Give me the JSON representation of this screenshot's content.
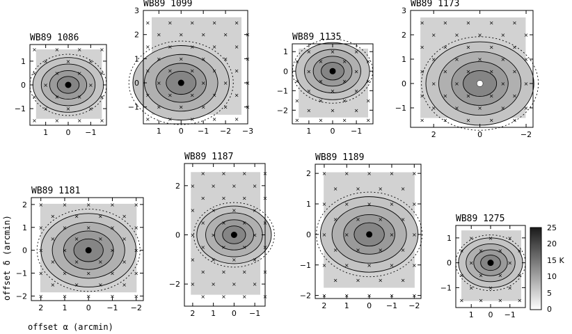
{
  "axes": {
    "xlabel": "offset α  (arcmin)",
    "ylabel": "offset δ  (arcmin)"
  },
  "colorbar": {
    "ticks": [
      "25",
      "20",
      "15 K",
      "10",
      "5",
      "0"
    ],
    "range": [
      0,
      25
    ]
  },
  "chart_data": [
    {
      "type": "heatmap",
      "title": "WB89  1086",
      "xlim": [
        1.7,
        -1.7
      ],
      "ylim": [
        -1.7,
        1.7
      ],
      "xticks": [
        "1",
        "0",
        "−1"
      ],
      "yticks": [
        "1",
        "0",
        "−1"
      ],
      "peak": [
        0,
        0
      ]
    },
    {
      "type": "heatmap",
      "title": "WB89  1099",
      "xlim": [
        1.7,
        -3.0
      ],
      "ylim": [
        -1.7,
        3.0
      ],
      "xticks": [
        "1",
        "0",
        "−1",
        "−2",
        "−3"
      ],
      "yticks": [
        "3",
        "2",
        "1",
        "0",
        "−1"
      ],
      "peak": [
        0,
        0
      ]
    },
    {
      "type": "heatmap",
      "title": "WB89  1135",
      "xlim": [
        1.7,
        -1.7
      ],
      "ylim": [
        -2.7,
        1.4
      ],
      "xticks": [
        "1",
        "0",
        "−1"
      ],
      "yticks": [
        "1",
        "0",
        "−1",
        "−2"
      ],
      "peak": [
        0,
        0
      ]
    },
    {
      "type": "heatmap",
      "title": "WB89  1173",
      "xlim": [
        3.0,
        -2.3
      ],
      "ylim": [
        -1.8,
        3.0
      ],
      "xticks": [
        "2",
        "0",
        "−2"
      ],
      "yticks": [
        "3",
        "2",
        "1",
        "0",
        "−1"
      ],
      "peak": [
        0,
        0
      ]
    },
    {
      "type": "heatmap",
      "title": "WB89  1181",
      "xlim": [
        2.4,
        -2.3
      ],
      "ylim": [
        -2.2,
        2.3
      ],
      "xticks": [
        "2",
        "1",
        "0",
        "−1",
        "−2"
      ],
      "yticks": [
        "2",
        "1",
        "0",
        "−1",
        "−2"
      ],
      "peak": [
        0,
        0
      ]
    },
    {
      "type": "heatmap",
      "title": "WB89  1187",
      "xlim": [
        2.4,
        -1.5
      ],
      "ylim": [
        -2.9,
        2.9
      ],
      "xticks": [
        "2",
        "1",
        "0",
        "−1"
      ],
      "yticks": [
        "2",
        "0",
        "−2"
      ],
      "peak": [
        0,
        0
      ]
    },
    {
      "type": "heatmap",
      "title": "WB89  1189",
      "xlim": [
        2.4,
        -2.3
      ],
      "ylim": [
        -2.1,
        2.3
      ],
      "xticks": [
        "2",
        "1",
        "0",
        "−1",
        "−2"
      ],
      "yticks": [
        "2",
        "1",
        "0",
        "−1",
        "−2"
      ],
      "peak": [
        0,
        0
      ]
    },
    {
      "type": "heatmap",
      "title": "WB89  1275",
      "xlim": [
        1.8,
        -1.8
      ],
      "ylim": [
        -1.8,
        1.5
      ],
      "xticks": [
        "1",
        "0",
        "−1"
      ],
      "yticks": [
        "1",
        "0",
        "−1"
      ],
      "peak": [
        0,
        0
      ]
    }
  ]
}
